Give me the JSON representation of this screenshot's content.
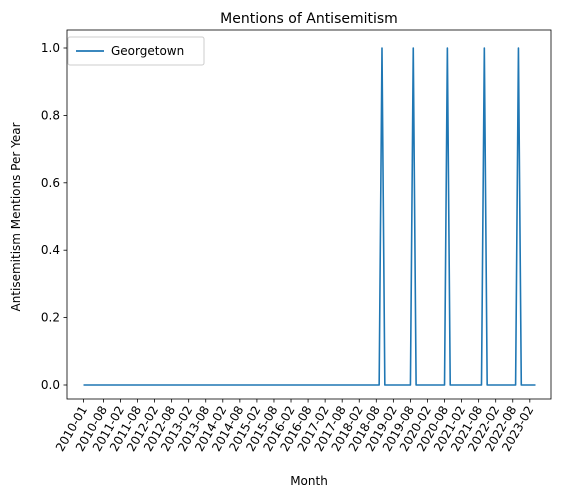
{
  "chart_data": {
    "type": "line",
    "title": "Mentions of Antisemitism",
    "xlabel": "Month",
    "ylabel": "Antisemitism Mentions Per Year",
    "ylim": [
      0.0,
      1.0
    ],
    "yticks": [
      "0.0",
      "0.2",
      "0.4",
      "0.6",
      "0.8",
      "1.0"
    ],
    "xticks": [
      "2010-01",
      "2010-08",
      "2011-02",
      "2011-08",
      "2012-02",
      "2012-08",
      "2013-02",
      "2013-08",
      "2014-02",
      "2014-08",
      "2015-02",
      "2015-08",
      "2016-02",
      "2016-08",
      "2017-02",
      "2017-08",
      "2018-02",
      "2018-08",
      "2019-02",
      "2019-08",
      "2020-02",
      "2020-08",
      "2021-02",
      "2021-08",
      "2022-02",
      "2022-08",
      "2023-02"
    ],
    "legend_position": "top-left",
    "grid": false,
    "series": [
      {
        "name": "Georgetown",
        "color": "#1f77b4",
        "peaks": [
          "2018-10",
          "2019-09",
          "2020-09",
          "2021-10",
          "2022-10"
        ],
        "baseline": 0,
        "peak_value": 1,
        "x_start": "2010-01",
        "x_end": "2023-04"
      }
    ]
  }
}
